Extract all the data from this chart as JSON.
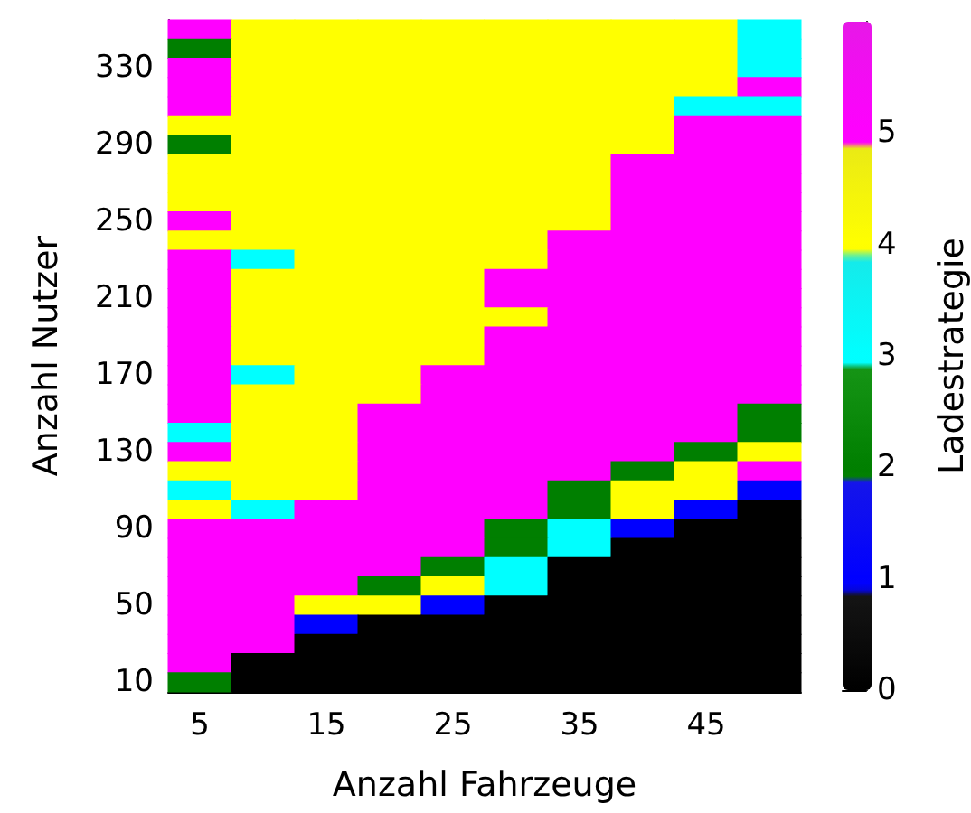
{
  "chart_data": {
    "type": "heatmap",
    "xlabel": "Anzahl Fahrzeuge",
    "ylabel": "Anzahl Nutzer",
    "clabel": "Ladestrategie",
    "categories": [
      "5",
      null,
      "15",
      null,
      "25",
      null,
      "35",
      null,
      "45",
      null
    ],
    "y_categories": [
      null,
      null,
      "330",
      null,
      null,
      null,
      "290",
      null,
      null,
      null,
      "250",
      null,
      null,
      null,
      "210",
      null,
      null,
      null,
      "170",
      null,
      null,
      null,
      "130",
      null,
      null,
      null,
      "90",
      null,
      null,
      null,
      "50",
      null,
      null,
      null,
      "10"
    ],
    "clim": [
      0,
      6
    ],
    "cticks": [
      0,
      1,
      2,
      3,
      4,
      5
    ],
    "colors": [
      "#000000",
      "#0000ff",
      "#007f00",
      "#00ffff",
      "#ffff00",
      "#ff00ff"
    ],
    "cells": [
      [
        5,
        4,
        4,
        4,
        4,
        4,
        4,
        4,
        4,
        3
      ],
      [
        2,
        4,
        4,
        4,
        4,
        4,
        4,
        4,
        4,
        3
      ],
      [
        5,
        4,
        4,
        4,
        4,
        4,
        4,
        4,
        4,
        3
      ],
      [
        5,
        4,
        4,
        4,
        4,
        4,
        4,
        4,
        4,
        5
      ],
      [
        5,
        4,
        4,
        4,
        4,
        4,
        4,
        4,
        3,
        3
      ],
      [
        4,
        4,
        4,
        4,
        4,
        4,
        4,
        4,
        5,
        5
      ],
      [
        2,
        4,
        4,
        4,
        4,
        4,
        4,
        4,
        5,
        5
      ],
      [
        4,
        4,
        4,
        4,
        4,
        4,
        4,
        5,
        5,
        5
      ],
      [
        4,
        4,
        4,
        4,
        4,
        4,
        4,
        5,
        5,
        5
      ],
      [
        4,
        4,
        4,
        4,
        4,
        4,
        4,
        5,
        5,
        5
      ],
      [
        5,
        4,
        4,
        4,
        4,
        4,
        4,
        5,
        5,
        5
      ],
      [
        4,
        4,
        4,
        4,
        4,
        4,
        5,
        5,
        5,
        5
      ],
      [
        5,
        3,
        4,
        4,
        4,
        4,
        5,
        5,
        5,
        5
      ],
      [
        5,
        4,
        4,
        4,
        4,
        5,
        5,
        5,
        5,
        5
      ],
      [
        5,
        4,
        4,
        4,
        4,
        5,
        5,
        5,
        5,
        5
      ],
      [
        5,
        4,
        4,
        4,
        4,
        4,
        5,
        5,
        5,
        5
      ],
      [
        5,
        4,
        4,
        4,
        4,
        5,
        5,
        5,
        5,
        5
      ],
      [
        5,
        4,
        4,
        4,
        4,
        5,
        5,
        5,
        5,
        5
      ],
      [
        5,
        3,
        4,
        4,
        5,
        5,
        5,
        5,
        5,
        5
      ],
      [
        5,
        4,
        4,
        4,
        5,
        5,
        5,
        5,
        5,
        5
      ],
      [
        5,
        4,
        4,
        5,
        5,
        5,
        5,
        5,
        5,
        2
      ],
      [
        3,
        4,
        4,
        5,
        5,
        5,
        5,
        5,
        5,
        2
      ],
      [
        5,
        4,
        4,
        5,
        5,
        5,
        5,
        5,
        2,
        4
      ],
      [
        4,
        4,
        4,
        5,
        5,
        5,
        5,
        2,
        4,
        5
      ],
      [
        3,
        4,
        4,
        5,
        5,
        5,
        2,
        4,
        4,
        1
      ],
      [
        4,
        3,
        5,
        5,
        5,
        5,
        2,
        4,
        1,
        0
      ],
      [
        5,
        5,
        5,
        5,
        5,
        2,
        3,
        1,
        0,
        0
      ],
      [
        5,
        5,
        5,
        5,
        5,
        2,
        3,
        0,
        0,
        0
      ],
      [
        5,
        5,
        5,
        5,
        2,
        3,
        0,
        0,
        0,
        0
      ],
      [
        5,
        5,
        5,
        2,
        4,
        3,
        0,
        0,
        0,
        0
      ],
      [
        5,
        5,
        4,
        4,
        1,
        0,
        0,
        0,
        0,
        0
      ],
      [
        5,
        5,
        1,
        0,
        0,
        0,
        0,
        0,
        0,
        0
      ],
      [
        5,
        5,
        0,
        0,
        0,
        0,
        0,
        0,
        0,
        0
      ],
      [
        5,
        0,
        0,
        0,
        0,
        0,
        0,
        0,
        0,
        0
      ],
      [
        2,
        0,
        0,
        0,
        0,
        0,
        0,
        0,
        0,
        0
      ]
    ]
  }
}
